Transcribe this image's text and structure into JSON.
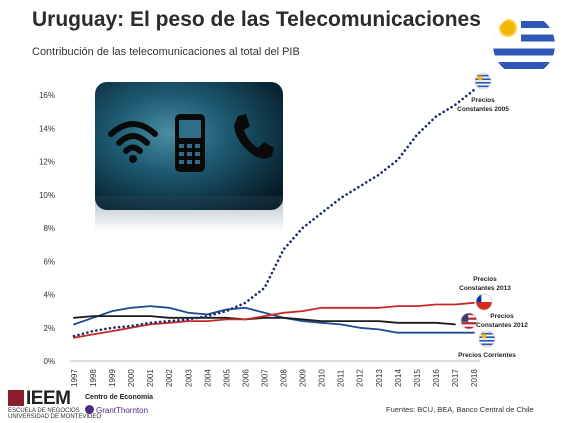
{
  "header": {
    "title": "Uruguay: El peso de las Telecomunicaciones",
    "subtitle": "Contribución de las telecomunicaciones al total del PIB"
  },
  "header_icon": "uruguay-flag-icon",
  "image_icons": [
    "wifi-icon",
    "mobile-phone-icon",
    "telephone-handset-icon"
  ],
  "chart_data": {
    "type": "line",
    "x": [
      "1997",
      "1998",
      "1999",
      "2000",
      "2001",
      "2002",
      "2003",
      "2004",
      "2005",
      "2006",
      "2007",
      "2008",
      "2009",
      "2010",
      "2011",
      "2012",
      "2013",
      "2014",
      "2015",
      "2016",
      "2017",
      "2018"
    ],
    "y_ticks": [
      "0%",
      "2%",
      "4%",
      "6%",
      "8%",
      "10%",
      "12%",
      "14%",
      "16%"
    ],
    "ylim": [
      0,
      17
    ],
    "grid": false,
    "series": [
      {
        "name": "Precios Constantes 2005",
        "color": "#1a2c6b",
        "style": "dotted",
        "marker": "uruguay-flag-icon",
        "values": [
          1.5,
          1.8,
          2.0,
          2.1,
          2.3,
          2.4,
          2.5,
          2.7,
          3.0,
          3.5,
          4.4,
          6.7,
          8.0,
          8.9,
          9.8,
          10.5,
          11.2,
          12.1,
          13.6,
          14.7,
          15.4,
          16.3
        ]
      },
      {
        "name": "Precios Constantes 2013",
        "color": "#c62828",
        "style": "solid",
        "marker": "chile-flag-icon",
        "values": [
          1.4,
          1.6,
          1.8,
          2.0,
          2.2,
          2.3,
          2.4,
          2.4,
          2.5,
          2.5,
          2.7,
          2.9,
          3.0,
          3.2,
          3.2,
          3.2,
          3.2,
          3.3,
          3.3,
          3.4,
          3.4,
          3.5
        ]
      },
      {
        "name": "Precios Constantes 2012",
        "color": "#1b1b1b",
        "style": "solid",
        "marker": "usa-flag-icon",
        "values": [
          2.6,
          2.7,
          2.7,
          2.7,
          2.7,
          2.6,
          2.6,
          2.6,
          2.6,
          2.5,
          2.6,
          2.6,
          2.5,
          2.4,
          2.4,
          2.4,
          2.4,
          2.3,
          2.3,
          2.3,
          2.2,
          null
        ]
      },
      {
        "name": "Precios Corrientes",
        "color": "#1e4a96",
        "style": "solid",
        "marker": "uruguay-flag-icon",
        "values": [
          2.2,
          2.6,
          3.0,
          3.2,
          3.3,
          3.2,
          2.9,
          2.8,
          3.1,
          3.2,
          2.9,
          2.6,
          2.4,
          2.3,
          2.2,
          2.0,
          1.9,
          1.7,
          1.7,
          1.7,
          1.7,
          1.7
        ]
      }
    ],
    "series_labels": [
      {
        "series": 0,
        "lines": [
          "Precios",
          "Constantes 2005"
        ]
      },
      {
        "series": 1,
        "lines": [
          "Precios",
          "Constantes 2013"
        ]
      },
      {
        "series": 2,
        "lines": [
          "Precios",
          "Constantes 2012"
        ]
      },
      {
        "series": 3,
        "lines": [
          "Precios Corrientes"
        ]
      }
    ]
  },
  "footer": {
    "source": "Fuentes: BCU, BEA, Banco Central de Chile",
    "logo_ieem": "IEEM",
    "logo_ieem_sub_1": "ESCUELA DE NEGOCIOS",
    "logo_ieem_sub_2": "UNIVERSIDAD DE MONTEVIDEO",
    "logo_centro": "Centro de Economía",
    "logo_gt": "GrantThornton"
  }
}
